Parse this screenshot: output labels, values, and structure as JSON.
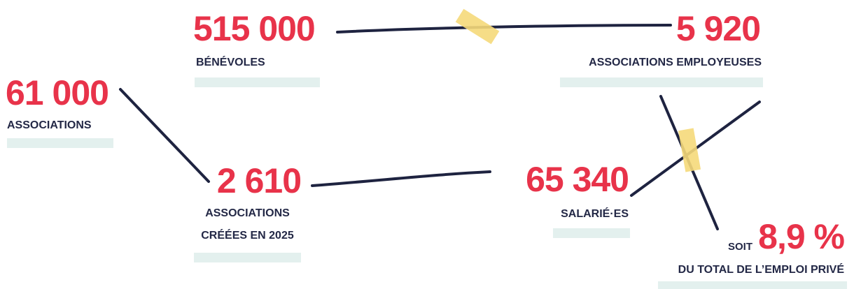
{
  "stats": [
    {
      "value": "515 000",
      "label": [
        "BÉNÉVOLES"
      ]
    },
    {
      "value": "5 920",
      "label": [
        "ASSOCIATIONS EMPLOYEUSES"
      ]
    },
    {
      "value": "61 000",
      "label": [
        "ASSOCIATIONS"
      ]
    },
    {
      "value": "2 610",
      "label": [
        "ASSOCIATIONS",
        "CRÉÉES EN 2025"
      ]
    },
    {
      "value": "65 340",
      "label": [
        "SALARIÉ·ES"
      ]
    }
  ],
  "share": {
    "prefix": "SOIT",
    "value": "8,9 %",
    "label": "DU TOTAL DE L’EMPLOI PRIVÉ"
  }
}
